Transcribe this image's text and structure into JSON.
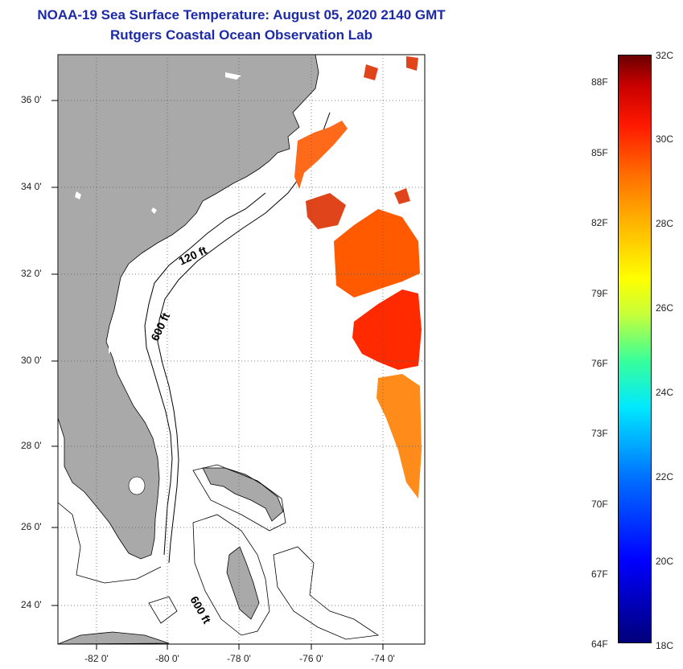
{
  "title": "NOAA-19 Sea Surface Temperature:  August 05, 2020 2140 GMT",
  "subtitle": "Rutgers Coastal Ocean Observation Lab",
  "map": {
    "lat_labels": [
      "36 0'",
      "34 0'",
      "32 0'",
      "30 0'",
      "28 0'",
      "26 0'",
      "24 0'"
    ],
    "lon_labels": [
      "-82 0'",
      "-80 0'",
      "-78 0'",
      "-76 0'",
      "-74 0'"
    ],
    "contour_labels": [
      "120 ft",
      "600 ft",
      "600 ft"
    ],
    "land_color": "#a9a9a9",
    "sst_colors": [
      "#ff2a00",
      "#ff5a00",
      "#ff8c1a",
      "#e0441a"
    ]
  },
  "colorbar": {
    "fahrenheit": [
      "88F",
      "85F",
      "82F",
      "79F",
      "76F",
      "73F",
      "70F",
      "67F",
      "64F"
    ],
    "celsius": [
      "32C",
      "30C",
      "28C",
      "26C",
      "24C",
      "22C",
      "20C",
      "18C"
    ],
    "colors": [
      "#00007a",
      "#0000ff",
      "#00e8ff",
      "#38ff9a",
      "#ffff00",
      "#ff6a00",
      "#ff1a00",
      "#6a0000"
    ]
  }
}
